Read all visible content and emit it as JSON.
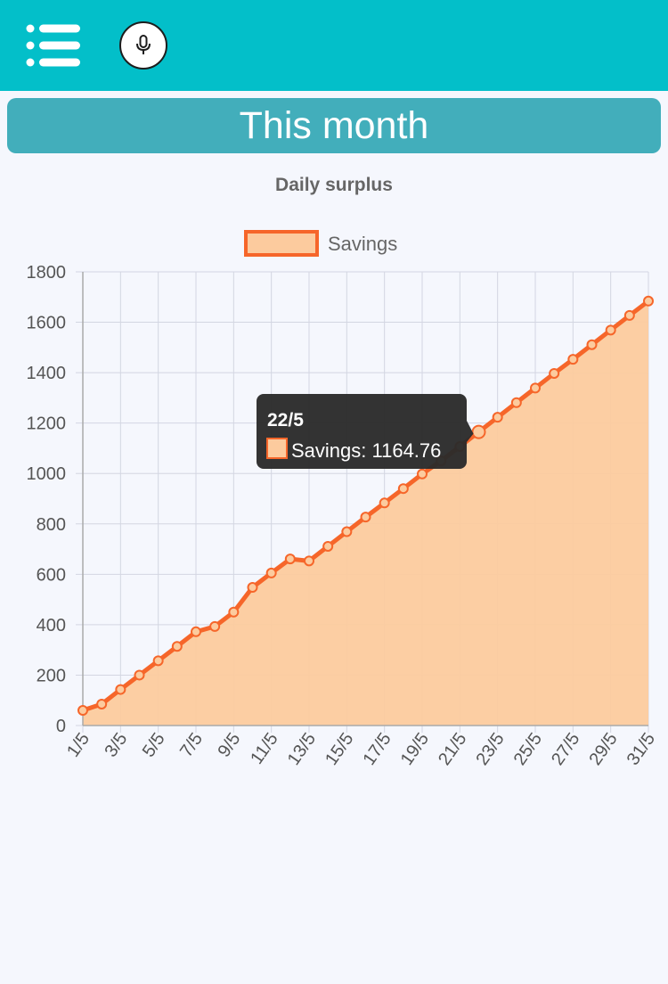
{
  "header": {
    "menu_icon": "hamburger-menu-icon",
    "mic_icon": "microphone-icon"
  },
  "banner": {
    "title": "This month"
  },
  "colors": {
    "topbar": "#03bfc9",
    "banner": "#42aebb",
    "series_line": "#f6662a",
    "series_fill": "#fccb9e",
    "tooltip_bg": "#2b2b2b"
  },
  "chart_data": {
    "type": "area",
    "title": "Daily surplus",
    "legend": {
      "label": "Savings",
      "position": "top"
    },
    "xlabel": "",
    "ylabel": "",
    "ylim": [
      0,
      1800
    ],
    "yticks": [
      0,
      200,
      400,
      600,
      800,
      1000,
      1200,
      1400,
      1600,
      1800
    ],
    "x": [
      "1/5",
      "2/5",
      "3/5",
      "4/5",
      "5/5",
      "6/5",
      "7/5",
      "8/5",
      "9/5",
      "10/5",
      "11/5",
      "12/5",
      "13/5",
      "14/5",
      "15/5",
      "16/5",
      "17/5",
      "18/5",
      "19/5",
      "20/5",
      "21/5",
      "22/5",
      "23/5",
      "24/5",
      "25/5",
      "26/5",
      "27/5",
      "28/5",
      "29/5",
      "30/5",
      "31/5"
    ],
    "xtick_labels": [
      "1/5",
      "3/5",
      "5/5",
      "7/5",
      "9/5",
      "11/5",
      "13/5",
      "15/5",
      "17/5",
      "19/5",
      "21/5",
      "23/5",
      "25/5",
      "27/5",
      "29/5",
      "31/5"
    ],
    "series": [
      {
        "name": "Savings",
        "values": [
          60,
          85,
          143,
          200,
          257,
          314,
          372,
          393,
          450,
          548,
          605,
          661,
          653,
          711,
          769,
          827,
          883,
          940,
          998,
          1050,
          1107,
          1164.76,
          1223,
          1281,
          1339,
          1397,
          1453,
          1511,
          1569,
          1627,
          1684
        ]
      }
    ],
    "tooltip": {
      "index": 21,
      "title": "22/5",
      "label": "Savings: 1164.76"
    }
  }
}
